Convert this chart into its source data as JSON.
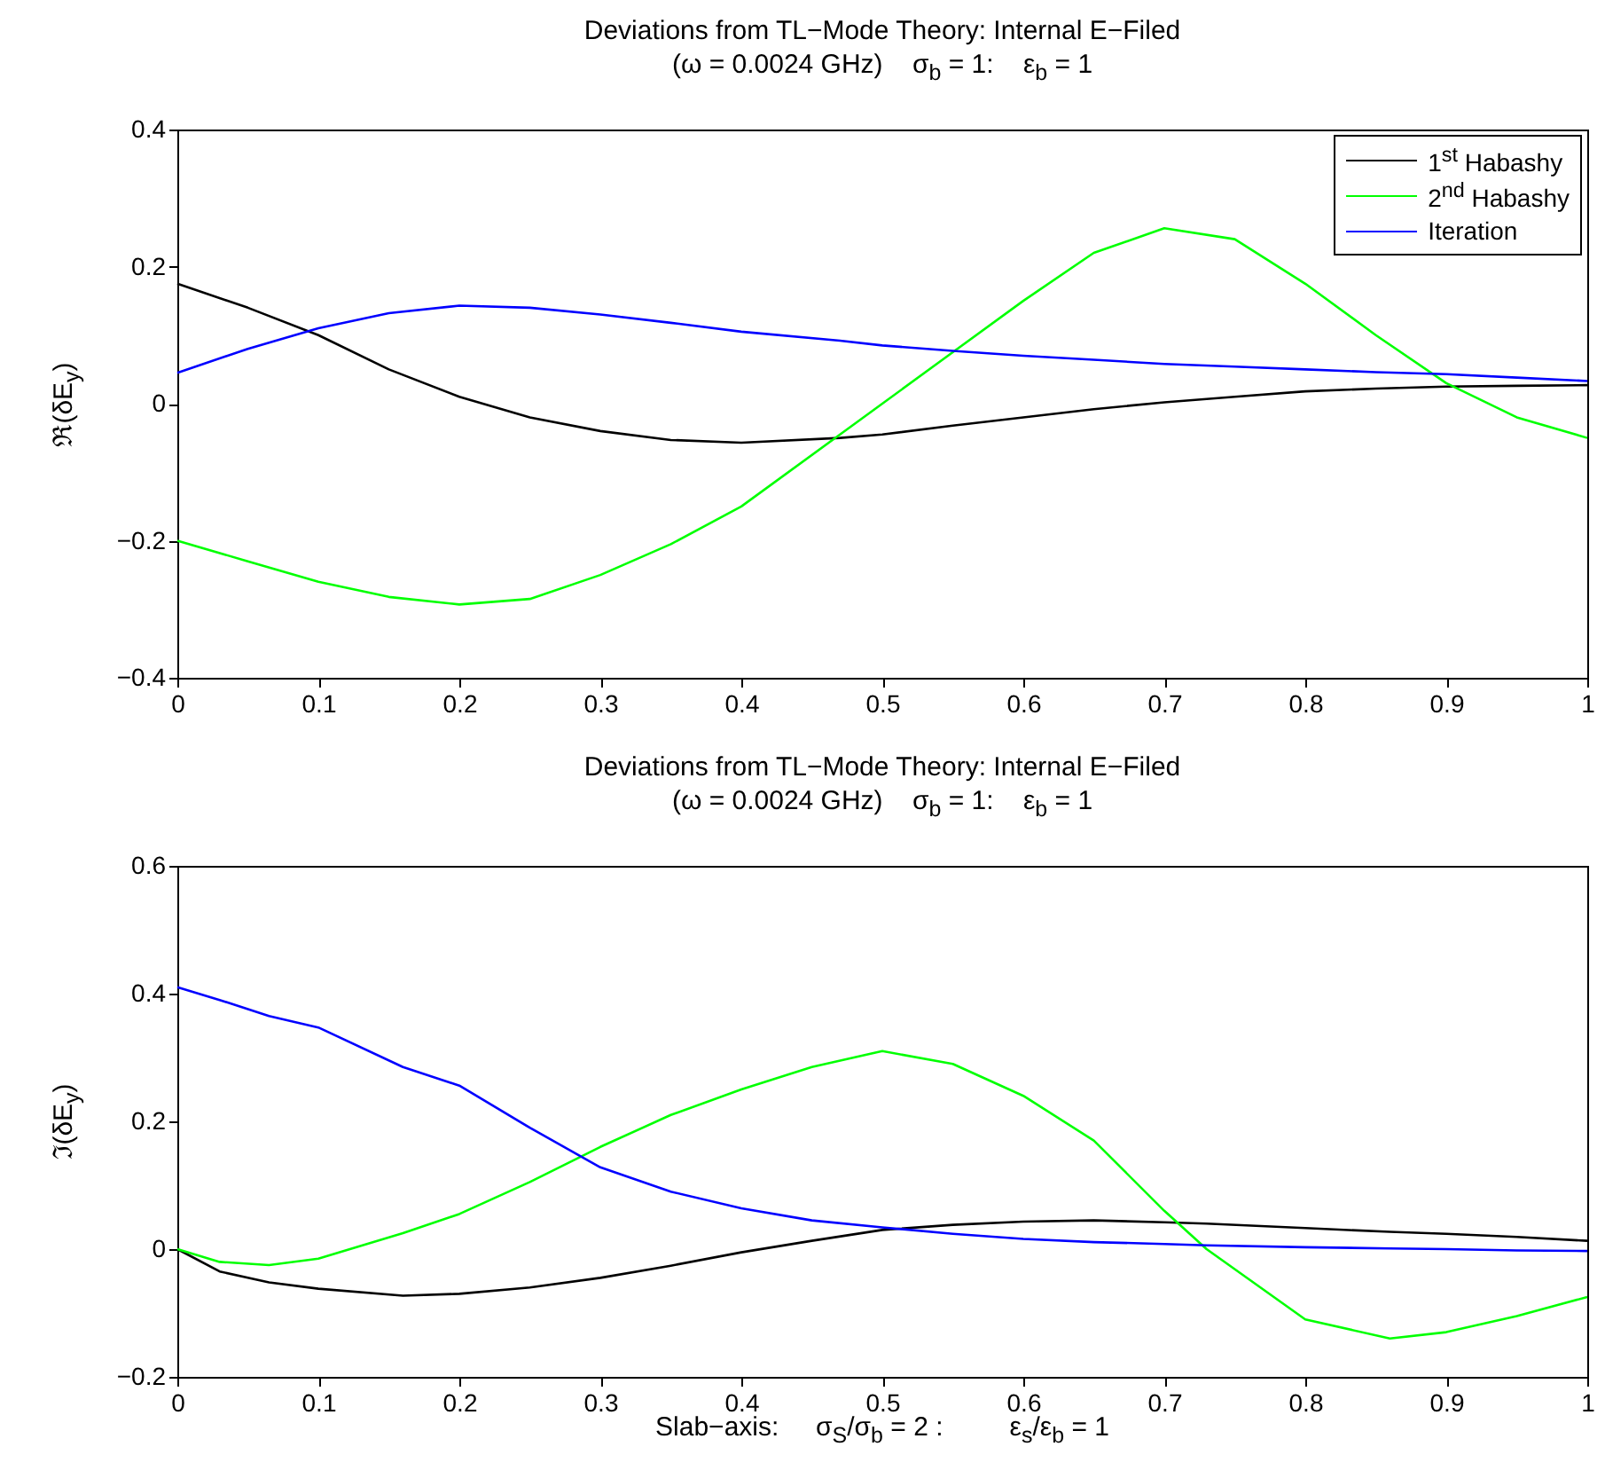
{
  "chart_data": [
    {
      "type": "line",
      "title": "Deviations from TL−Mode Theory: Internal E−Filed",
      "subtitle": "(ω = 0.0024 GHz)    σ$_{b}$ = 1:    ε$_{b}$ = 1",
      "ylabel": "ℜ(δE$_{y}$)",
      "x": [
        0,
        0.05,
        0.1,
        0.15,
        0.2,
        0.25,
        0.3,
        0.35,
        0.4,
        0.47,
        0.5,
        0.55,
        0.6,
        0.65,
        0.7,
        0.75,
        0.8,
        0.85,
        0.9,
        0.95,
        1
      ],
      "series": [
        {
          "name": "1$^{st}$ Habashy",
          "color": "#000000",
          "values": [
            0.175,
            0.14,
            0.1,
            0.05,
            0.01,
            -0.02,
            -0.04,
            -0.053,
            -0.057,
            -0.05,
            -0.045,
            -0.032,
            -0.02,
            -0.008,
            0.002,
            0.01,
            0.018,
            0.022,
            0.025,
            0.026,
            0.027
          ]
        },
        {
          "name": "2$^{nd}$ Habashy",
          "color": "#00ff00",
          "values": [
            -0.2,
            -0.23,
            -0.26,
            -0.282,
            -0.293,
            -0.285,
            -0.25,
            -0.205,
            -0.15,
            -0.045,
            0.0,
            0.075,
            0.15,
            0.22,
            0.256,
            0.24,
            0.175,
            0.1,
            0.03,
            -0.02,
            -0.05
          ]
        },
        {
          "name": "Iteration",
          "color": "#0000ff",
          "values": [
            0.045,
            0.08,
            0.11,
            0.132,
            0.143,
            0.14,
            0.13,
            0.118,
            0.105,
            0.092,
            0.085,
            0.077,
            0.07,
            0.064,
            0.058,
            0.054,
            0.05,
            0.046,
            0.043,
            0.038,
            0.033
          ]
        }
      ],
      "xlim": [
        0,
        1
      ],
      "xticks": [
        0,
        0.1,
        0.2,
        0.3,
        0.4,
        0.5,
        0.6,
        0.7,
        0.8,
        0.9,
        1
      ],
      "ylim": [
        -0.4,
        0.4
      ],
      "yticks": [
        -0.4,
        -0.2,
        0,
        0.2,
        0.4
      ],
      "grid": false,
      "legend": "top right"
    },
    {
      "type": "line",
      "title": "Deviations from TL−Mode Theory: Internal E−Filed",
      "subtitle": "(ω = 0.0024 GHz)    σ$_{b}$ = 1:    ε$_{b}$ = 1",
      "ylabel": "ℑ(δE$_{y}$)",
      "xlabel": "Slab−axis:     σ$_{S}$/σ$_{b}$ = 2 :         ε$_{s}$/ε$_{b}$ = 1",
      "x": [
        0,
        0.03,
        0.065,
        0.1,
        0.16,
        0.2,
        0.25,
        0.3,
        0.35,
        0.4,
        0.45,
        0.5,
        0.55,
        0.6,
        0.65,
        0.7,
        0.73,
        0.8,
        0.86,
        0.9,
        0.95,
        1
      ],
      "series": [
        {
          "color": "#000000",
          "values": [
            0,
            -0.035,
            -0.052,
            -0.062,
            -0.073,
            -0.07,
            -0.06,
            -0.045,
            -0.026,
            -0.005,
            0.013,
            0.03,
            0.038,
            0.043,
            0.045,
            0.042,
            0.04,
            0.033,
            0.027,
            0.024,
            0.019,
            0.013
          ]
        },
        {
          "color": "#00ff00",
          "values": [
            0,
            -0.02,
            -0.025,
            -0.015,
            0.025,
            0.055,
            0.105,
            0.16,
            0.21,
            0.25,
            0.285,
            0.31,
            0.29,
            0.24,
            0.17,
            0.06,
            0.0,
            -0.11,
            -0.14,
            -0.13,
            -0.105,
            -0.075
          ]
        },
        {
          "color": "#0000ff",
          "values": [
            0.41,
            0.39,
            0.365,
            0.347,
            0.285,
            0.256,
            0.19,
            0.128,
            0.09,
            0.064,
            0.045,
            0.034,
            0.024,
            0.016,
            0.011,
            0.008,
            0.006,
            0.003,
            0.001,
            0.0,
            -0.002,
            -0.003
          ]
        }
      ],
      "xlim": [
        0,
        1
      ],
      "xticks": [
        0,
        0.1,
        0.2,
        0.3,
        0.4,
        0.5,
        0.6,
        0.7,
        0.8,
        0.9,
        1
      ],
      "ylim": [
        -0.2,
        0.6
      ],
      "yticks": [
        -0.2,
        0,
        0.2,
        0.4,
        0.6
      ],
      "grid": false
    }
  ]
}
